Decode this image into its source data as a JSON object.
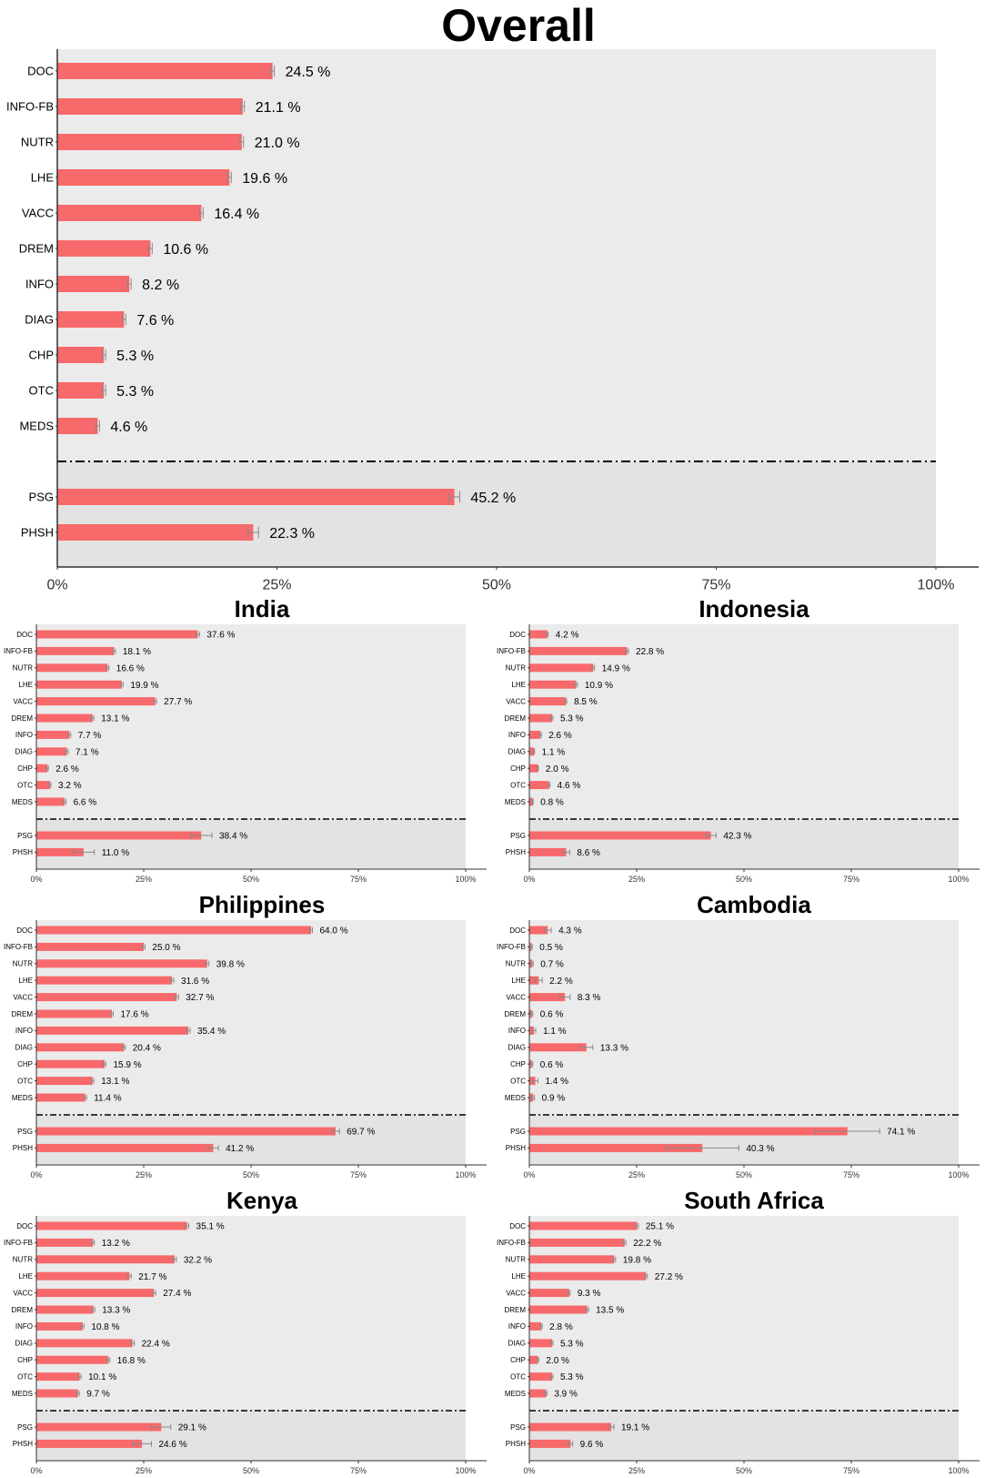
{
  "style": {
    "bar_color": "#F8696B",
    "panel_bg": "#EBEBEB",
    "axis_color": "#333333",
    "error_color": "#888888"
  },
  "chart_data": [
    {
      "type": "bar",
      "title": "Overall",
      "categories": [
        "DOC",
        "INFO-FB",
        "NUTR",
        "LHE",
        "VACC",
        "DREM",
        "INFO",
        "DIAG",
        "CHP",
        "OTC",
        "MEDS",
        "PSG",
        "PHSH"
      ],
      "values": [
        24.5,
        21.1,
        21.0,
        19.6,
        16.4,
        10.6,
        8.2,
        7.6,
        5.3,
        5.3,
        4.6,
        45.2,
        22.3
      ],
      "value_labels": [
        "24.5 %",
        "21.1 %",
        "21.0 %",
        "19.6 %",
        "16.4 %",
        "10.6 %",
        "8.2 %",
        "7.6 %",
        "5.3 %",
        "5.3 %",
        "4.6 %",
        "45.2 %",
        "22.3 %"
      ],
      "errors": [
        0.2,
        0.2,
        0.2,
        0.2,
        0.2,
        0.2,
        0.2,
        0.2,
        0.2,
        0.2,
        0.2,
        0.6,
        0.6
      ],
      "xlim": [
        0,
        100
      ],
      "xticks": [
        "0%",
        "25%",
        "50%",
        "75%",
        "100%"
      ],
      "divider_after": "MEDS"
    },
    {
      "type": "bar",
      "title": "India",
      "categories": [
        "DOC",
        "INFO-FB",
        "NUTR",
        "LHE",
        "VACC",
        "DREM",
        "INFO",
        "DIAG",
        "CHP",
        "OTC",
        "MEDS",
        "PSG",
        "PHSH"
      ],
      "values": [
        37.6,
        18.1,
        16.6,
        19.9,
        27.7,
        13.1,
        7.7,
        7.1,
        2.6,
        3.2,
        6.6,
        38.4,
        11.0
      ],
      "value_labels": [
        "37.6 %",
        "18.1 %",
        "16.6 %",
        "19.9 %",
        "27.7 %",
        "13.1 %",
        "7.7 %",
        "7.1 %",
        "2.6 %",
        "3.2 %",
        "6.6 %",
        "38.4 %",
        "11.0 %"
      ],
      "errors": [
        0.4,
        0.3,
        0.3,
        0.3,
        0.3,
        0.3,
        0.3,
        0.3,
        0.2,
        0.2,
        0.3,
        2.5,
        2.5
      ],
      "xlim": [
        0,
        100
      ],
      "xticks": [
        "0%",
        "25%",
        "50%",
        "75%",
        "100%"
      ],
      "divider_after": "MEDS"
    },
    {
      "type": "bar",
      "title": "Indonesia",
      "categories": [
        "DOC",
        "INFO-FB",
        "NUTR",
        "LHE",
        "VACC",
        "DREM",
        "INFO",
        "DIAG",
        "CHP",
        "OTC",
        "MEDS",
        "PSG",
        "PHSH"
      ],
      "values": [
        4.2,
        22.8,
        14.9,
        10.9,
        8.5,
        5.3,
        2.6,
        1.1,
        2.0,
        4.6,
        0.8,
        42.3,
        8.6
      ],
      "value_labels": [
        "4.2 %",
        "22.8 %",
        "14.9 %",
        "10.9 %",
        "8.5 %",
        "5.3 %",
        "2.6 %",
        "1.1 %",
        "2.0 %",
        "4.6 %",
        "0.8 %",
        "42.3 %",
        "8.6 %"
      ],
      "errors": [
        0.2,
        0.3,
        0.3,
        0.3,
        0.2,
        0.2,
        0.2,
        0.1,
        0.1,
        0.2,
        0.1,
        1.2,
        0.8
      ],
      "xlim": [
        0,
        100
      ],
      "xticks": [
        "0%",
        "25%",
        "50%",
        "75%",
        "100%"
      ],
      "divider_after": "MEDS"
    },
    {
      "type": "bar",
      "title": "Philippines",
      "categories": [
        "DOC",
        "INFO-FB",
        "NUTR",
        "LHE",
        "VACC",
        "DREM",
        "INFO",
        "DIAG",
        "CHP",
        "OTC",
        "MEDS",
        "PSG",
        "PHSH"
      ],
      "values": [
        64.0,
        25.0,
        39.8,
        31.6,
        32.7,
        17.6,
        35.4,
        20.4,
        15.9,
        13.1,
        11.4,
        69.7,
        41.2
      ],
      "value_labels": [
        "64.0 %",
        "25.0 %",
        "39.8 %",
        "31.6 %",
        "32.7 %",
        "17.6 %",
        "35.4 %",
        "20.4 %",
        "15.9 %",
        "13.1 %",
        "11.4 %",
        "69.7 %",
        "41.2 %"
      ],
      "errors": [
        0.3,
        0.3,
        0.4,
        0.4,
        0.4,
        0.3,
        0.4,
        0.3,
        0.3,
        0.3,
        0.3,
        0.9,
        1.2
      ],
      "xlim": [
        0,
        100
      ],
      "xticks": [
        "0%",
        "25%",
        "50%",
        "75%",
        "100%"
      ],
      "divider_after": "MEDS"
    },
    {
      "type": "bar",
      "title": "Cambodia",
      "categories": [
        "DOC",
        "INFO-FB",
        "NUTR",
        "LHE",
        "VACC",
        "DREM",
        "INFO",
        "DIAG",
        "CHP",
        "OTC",
        "MEDS",
        "PSG",
        "PHSH"
      ],
      "values": [
        4.3,
        0.5,
        0.7,
        2.2,
        8.3,
        0.6,
        1.1,
        13.3,
        0.6,
        1.4,
        0.9,
        74.1,
        40.3
      ],
      "value_labels": [
        "4.3 %",
        "0.5 %",
        "0.7 %",
        "2.2 %",
        "8.3 %",
        "0.6 %",
        "1.1 %",
        "13.3 %",
        "0.6 %",
        "1.4 %",
        "0.9 %",
        "74.1 %",
        "40.3 %"
      ],
      "errors": [
        0.8,
        0.2,
        0.2,
        0.8,
        1.2,
        0.2,
        0.4,
        1.5,
        0.2,
        0.6,
        0.3,
        7.5,
        8.5
      ],
      "xlim": [
        0,
        100
      ],
      "xticks": [
        "0%",
        "25%",
        "50%",
        "75%",
        "100%"
      ],
      "divider_after": "MEDS"
    },
    {
      "type": "bar",
      "title": "Kenya",
      "categories": [
        "DOC",
        "INFO-FB",
        "NUTR",
        "LHE",
        "VACC",
        "DREM",
        "INFO",
        "DIAG",
        "CHP",
        "OTC",
        "MEDS",
        "PSG",
        "PHSH"
      ],
      "values": [
        35.1,
        13.2,
        32.2,
        21.7,
        27.4,
        13.3,
        10.8,
        22.4,
        16.8,
        10.1,
        9.7,
        29.1,
        24.6
      ],
      "value_labels": [
        "35.1 %",
        "13.2 %",
        "32.2 %",
        "21.7 %",
        "27.4 %",
        "13.3 %",
        "10.8 %",
        "22.4 %",
        "16.8 %",
        "10.1 %",
        "9.7 %",
        "29.1 %",
        "24.6 %"
      ],
      "errors": [
        0.4,
        0.3,
        0.4,
        0.4,
        0.4,
        0.3,
        0.3,
        0.4,
        0.3,
        0.3,
        0.3,
        2.2,
        2.2
      ],
      "xlim": [
        0,
        100
      ],
      "xticks": [
        "0%",
        "25%",
        "50%",
        "75%",
        "100%"
      ],
      "divider_after": "MEDS"
    },
    {
      "type": "bar",
      "title": "South Africa",
      "categories": [
        "DOC",
        "INFO-FB",
        "NUTR",
        "LHE",
        "VACC",
        "DREM",
        "INFO",
        "DIAG",
        "CHP",
        "OTC",
        "MEDS",
        "PSG",
        "PHSH"
      ],
      "values": [
        25.1,
        22.2,
        19.8,
        27.2,
        9.3,
        13.5,
        2.8,
        5.3,
        2.0,
        5.3,
        3.9,
        19.1,
        9.6
      ],
      "value_labels": [
        "25.1 %",
        "22.2 %",
        "19.8 %",
        "27.2 %",
        "9.3 %",
        "13.5 %",
        "2.8 %",
        "5.3 %",
        "2.0 %",
        "5.3 %",
        "3.9 %",
        "19.1 %",
        "9.6 %"
      ],
      "errors": [
        0.3,
        0.3,
        0.3,
        0.3,
        0.2,
        0.3,
        0.2,
        0.2,
        0.2,
        0.2,
        0.2,
        0.6,
        0.5
      ],
      "xlim": [
        0,
        100
      ],
      "xticks": [
        "0%",
        "25%",
        "50%",
        "75%",
        "100%"
      ],
      "divider_after": "MEDS"
    }
  ]
}
